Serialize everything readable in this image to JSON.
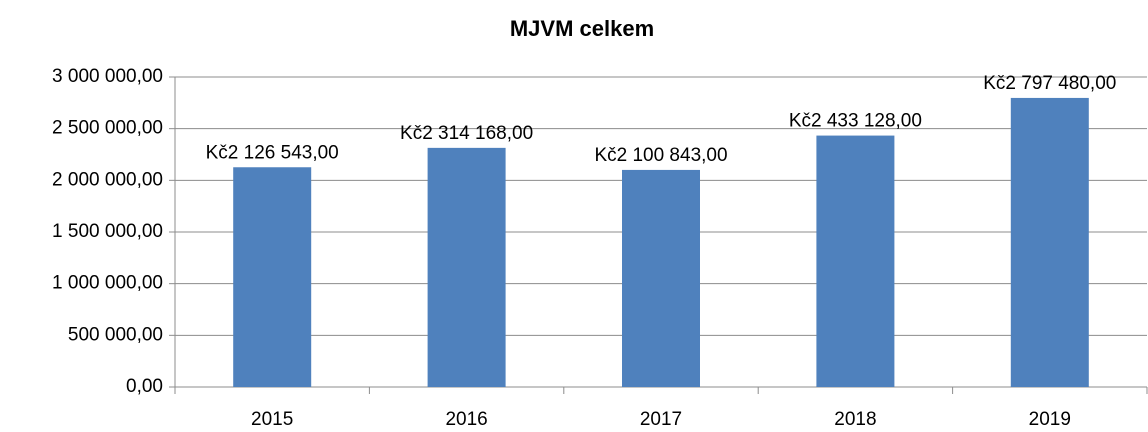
{
  "chart_data": {
    "type": "bar",
    "title": "MJVM celkem",
    "categories": [
      "2015",
      "2016",
      "2017",
      "2018",
      "2019"
    ],
    "values": [
      2126543,
      2314168,
      2100843,
      2433128,
      2797480
    ],
    "value_labels": [
      "Kč2 126 543,00",
      "Kč2 314 168,00",
      "Kč2 100 843,00",
      "Kč2 433 128,00",
      "Kč2 797 480,00"
    ],
    "color": "#4f81bd",
    "ylim": [
      0,
      3000000
    ],
    "yticks": [
      {
        "value": 0,
        "label": "0,00"
      },
      {
        "value": 500000,
        "label": "500 000,00"
      },
      {
        "value": 1000000,
        "label": "1 000 000,00"
      },
      {
        "value": 1500000,
        "label": "1 500 000,00"
      },
      {
        "value": 2000000,
        "label": "2 000 000,00"
      },
      {
        "value": 2500000,
        "label": "2 500 000,00"
      },
      {
        "value": 3000000,
        "label": "3 000 000,00"
      }
    ],
    "grid": true
  }
}
